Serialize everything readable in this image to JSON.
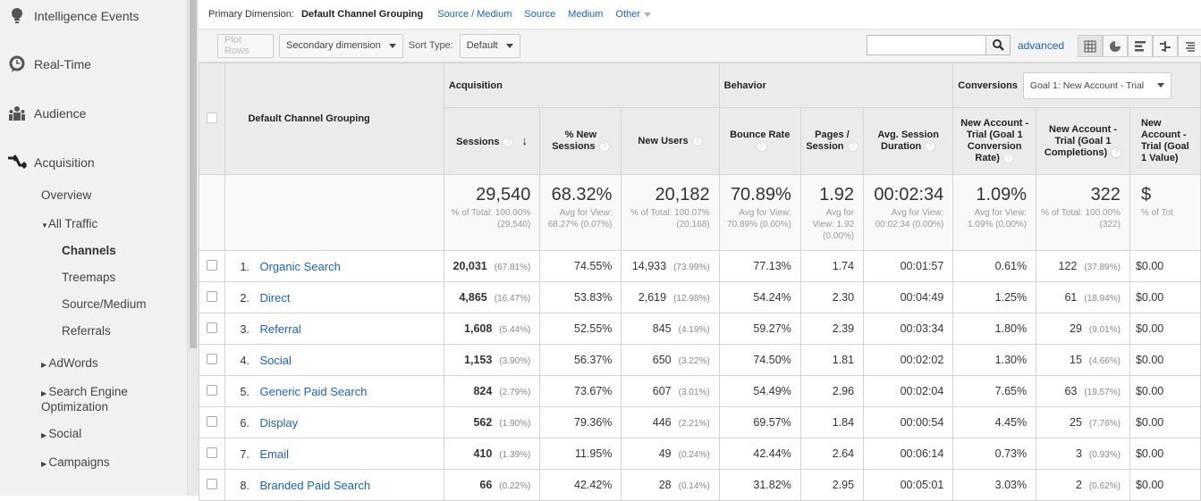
{
  "sidebar": {
    "top_items": [
      {
        "label": "Intelligence Events",
        "icon": "lightbulb-icon"
      },
      {
        "label": "Real-Time",
        "icon": "clock-bubble-icon"
      },
      {
        "label": "Audience",
        "icon": "people-icon"
      },
      {
        "label": "Acquisition",
        "icon": "acquisition-arrows-icon"
      }
    ],
    "overview": "Overview",
    "all_traffic": "All Traffic",
    "all_traffic_children": [
      "Channels",
      "Treemaps",
      "Source/Medium",
      "Referrals"
    ],
    "collapsed": [
      "AdWords",
      "Search Engine Optimization",
      "Social",
      "Campaigns"
    ]
  },
  "primary_dimension": {
    "label": "Primary Dimension:",
    "selected": "Default Channel Grouping",
    "options": [
      "Source / Medium",
      "Source",
      "Medium",
      "Other"
    ]
  },
  "toolbar": {
    "plot_rows": "Plot Rows",
    "secondary": "Secondary dimension",
    "sort_label": "Sort Type:",
    "sort_value": "Default",
    "search_value": "",
    "advanced": "advanced",
    "views": [
      "table-view-icon",
      "pie-view-icon",
      "performance-view-icon",
      "comparison-view-icon",
      "pivot-view-icon"
    ]
  },
  "table": {
    "dimension_header": "Default Channel Grouping",
    "groups": {
      "acquisition": "Acquisition",
      "behavior": "Behavior",
      "conversions": "Conversions",
      "goal_select": "Goal 1: New Account - Trial"
    },
    "columns": [
      "Sessions",
      "% New Sessions",
      "New Users",
      "Bounce Rate",
      "Pages / Session",
      "Avg. Session Duration",
      "New Account - Trial (Goal 1 Conversion Rate)",
      "New Account - Trial (Goal 1 Completions)",
      "New Account - Trial (Goal 1 Value)"
    ],
    "totals": [
      {
        "value": "29,540",
        "sub": "% of Total: 100.00% (29,540)"
      },
      {
        "value": "68.32%",
        "sub": "Avg for View: 68.27% (0.07%)"
      },
      {
        "value": "20,182",
        "sub": "% of Total: 100.07% (20,168)"
      },
      {
        "value": "70.89%",
        "sub": "Avg for View: 70.89% (0.00%)"
      },
      {
        "value": "1.92",
        "sub": "Avg for View: 1.92 (0.00%)"
      },
      {
        "value": "00:02:34",
        "sub": "Avg for View: 00:02:34 (0.00%)"
      },
      {
        "value": "1.09%",
        "sub": "Avg for View: 1.09% (0.00%)"
      },
      {
        "value": "322",
        "sub": "% of Total: 100.00% (322)"
      },
      {
        "value": "$",
        "sub": "% of Tot"
      }
    ],
    "rows": [
      {
        "n": "1.",
        "name": "Organic Search",
        "sessions": "20,031",
        "sessions_pct": "(67.81%)",
        "new_sess": "74.55%",
        "new_users": "14,933",
        "new_users_pct": "(73.99%)",
        "bounce": "77.13%",
        "pages": "1.74",
        "dur": "00:01:57",
        "conv": "0.61%",
        "comp": "122",
        "comp_pct": "(37.89%)",
        "value": "$0.00"
      },
      {
        "n": "2.",
        "name": "Direct",
        "sessions": "4,865",
        "sessions_pct": "(16.47%)",
        "new_sess": "53.83%",
        "new_users": "2,619",
        "new_users_pct": "(12.98%)",
        "bounce": "54.24%",
        "pages": "2.30",
        "dur": "00:04:49",
        "conv": "1.25%",
        "comp": "61",
        "comp_pct": "(18.94%)",
        "value": "$0.00"
      },
      {
        "n": "3.",
        "name": "Referral",
        "sessions": "1,608",
        "sessions_pct": "(5.44%)",
        "new_sess": "52.55%",
        "new_users": "845",
        "new_users_pct": "(4.19%)",
        "bounce": "59.27%",
        "pages": "2.39",
        "dur": "00:03:34",
        "conv": "1.80%",
        "comp": "29",
        "comp_pct": "(9.01%)",
        "value": "$0.00"
      },
      {
        "n": "4.",
        "name": "Social",
        "sessions": "1,153",
        "sessions_pct": "(3.90%)",
        "new_sess": "56.37%",
        "new_users": "650",
        "new_users_pct": "(3.22%)",
        "bounce": "74.50%",
        "pages": "1.81",
        "dur": "00:02:02",
        "conv": "1.30%",
        "comp": "15",
        "comp_pct": "(4.66%)",
        "value": "$0.00"
      },
      {
        "n": "5.",
        "name": "Generic Paid Search",
        "sessions": "824",
        "sessions_pct": "(2.79%)",
        "new_sess": "73.67%",
        "new_users": "607",
        "new_users_pct": "(3.01%)",
        "bounce": "54.49%",
        "pages": "2.96",
        "dur": "00:02:04",
        "conv": "7.65%",
        "comp": "63",
        "comp_pct": "(19.57%)",
        "value": "$0.00"
      },
      {
        "n": "6.",
        "name": "Display",
        "sessions": "562",
        "sessions_pct": "(1.90%)",
        "new_sess": "79.36%",
        "new_users": "446",
        "new_users_pct": "(2.21%)",
        "bounce": "69.57%",
        "pages": "1.84",
        "dur": "00:00:54",
        "conv": "4.45%",
        "comp": "25",
        "comp_pct": "(7.76%)",
        "value": "$0.00"
      },
      {
        "n": "7.",
        "name": "Email",
        "sessions": "410",
        "sessions_pct": "(1.39%)",
        "new_sess": "11.95%",
        "new_users": "49",
        "new_users_pct": "(0.24%)",
        "bounce": "42.44%",
        "pages": "2.64",
        "dur": "00:06:14",
        "conv": "0.73%",
        "comp": "3",
        "comp_pct": "(0.93%)",
        "value": "$0.00"
      },
      {
        "n": "8.",
        "name": "Branded Paid Search",
        "sessions": "66",
        "sessions_pct": "(0.22%)",
        "new_sess": "42.42%",
        "new_users": "28",
        "new_users_pct": "(0.14%)",
        "bounce": "31.82%",
        "pages": "2.95",
        "dur": "00:05:01",
        "conv": "3.03%",
        "comp": "2",
        "comp_pct": "(0.62%)",
        "value": "$0.00"
      }
    ]
  },
  "colors": {
    "link": "#1a62c4",
    "header_bg": "#ebebeb",
    "sidebar_bg": "#f1f1f1"
  }
}
